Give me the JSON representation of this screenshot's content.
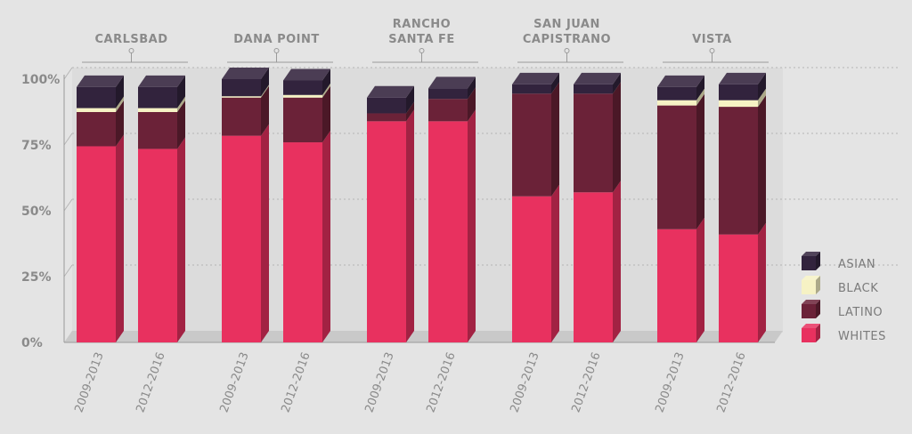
{
  "chart_data": {
    "type": "bar",
    "stacked": true,
    "groups": [
      "CARLSBAD",
      "DANA POINT",
      "RANCHO\nSANTA FE",
      "SAN JUAN\nCAPISTRANO",
      "VISTA"
    ],
    "categories": [
      "2009-2013",
      "2012-2016"
    ],
    "series_order": [
      "WHITES",
      "LATINO",
      "BLACK",
      "ASIAN"
    ],
    "series": [
      {
        "name": "WHITES",
        "color": "#e8315f",
        "values": [
          [
            74.5,
            73.5
          ],
          [
            78.5,
            76
          ],
          [
            84,
            84
          ],
          [
            55.5,
            57
          ],
          [
            43,
            41
          ]
        ]
      },
      {
        "name": "LATINO",
        "color": "#6b2238",
        "values": [
          [
            13,
            14
          ],
          [
            14.5,
            17
          ],
          [
            3,
            8.5
          ],
          [
            39,
            37.5
          ],
          [
            47,
            48.5
          ]
        ]
      },
      {
        "name": "BLACK",
        "color": "#f6f2c4",
        "values": [
          [
            1.5,
            1.5
          ],
          [
            0.5,
            1
          ],
          [
            0,
            0
          ],
          [
            0,
            0
          ],
          [
            2,
            2.5
          ]
        ]
      },
      {
        "name": "ASIAN",
        "color": "#32233d",
        "values": [
          [
            8,
            8
          ],
          [
            6.5,
            5.5
          ],
          [
            6,
            4
          ],
          [
            3.5,
            3.5
          ],
          [
            5,
            6
          ]
        ]
      }
    ],
    "yticks": [
      "0%",
      "25%",
      "50%",
      "75%",
      "100%"
    ],
    "ylim": [
      0,
      100
    ],
    "legend_position": "right",
    "grid": true
  }
}
